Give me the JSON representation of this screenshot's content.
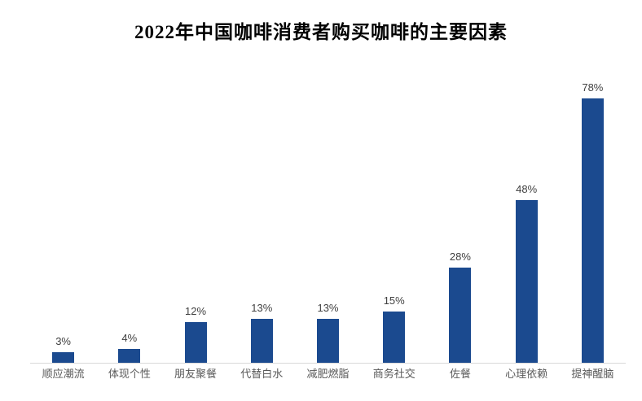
{
  "header": {
    "title": "2022年中国咖啡消费者购买咖啡的主要因素"
  },
  "chart_data": {
    "type": "bar",
    "title": "2022年中国咖啡消费者购买咖啡的主要因素",
    "categories": [
      "顺应潮流",
      "体现个性",
      "朋友聚餐",
      "代替白水",
      "减肥燃脂",
      "商务社交",
      "佐餐",
      "心理依赖",
      "提神醒脑"
    ],
    "values": [
      3,
      4,
      12,
      13,
      13,
      15,
      28,
      48,
      78
    ],
    "value_labels": [
      "3%",
      "4%",
      "12%",
      "13%",
      "13%",
      "15%",
      "28%",
      "48%",
      "78%"
    ],
    "unit": "%",
    "xlabel": "",
    "ylabel": "",
    "ylim": [
      0,
      85
    ],
    "grid": false,
    "legend": false,
    "colors": {
      "bar": "#1B4A8F",
      "axis_line": "#D9D9D9",
      "value_label": "#404040",
      "category_label": "#595959",
      "title": "#000000"
    }
  }
}
